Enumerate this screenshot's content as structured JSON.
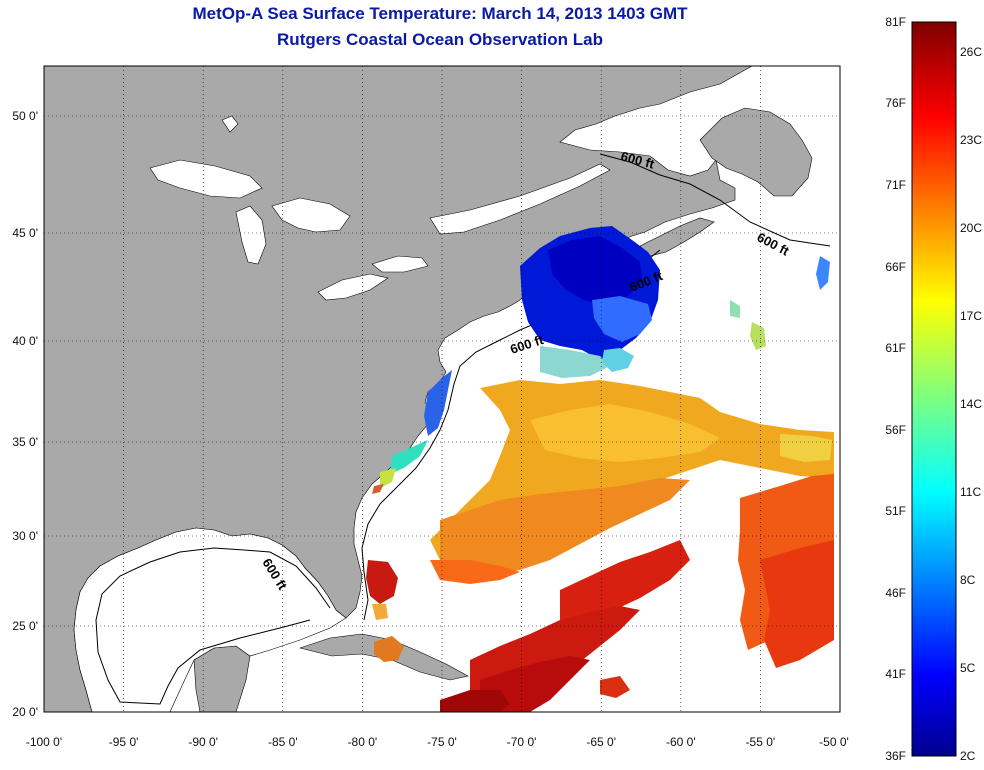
{
  "title": {
    "line1": "MetOp-A Sea Surface Temperature:  March 14, 2013 1403 GMT",
    "line2": "Rutgers Coastal Ocean Observation Lab"
  },
  "map": {
    "projection": "mercator",
    "lon_range": [
      -100,
      -50
    ],
    "lat_range": [
      20,
      52
    ],
    "longitude_ticks": [
      "-100 0'",
      "-95 0'",
      "-90 0'",
      "-85 0'",
      "-80 0'",
      "-75 0'",
      "-70 0'",
      "-65 0'",
      "-60 0'",
      "-55 0'",
      "-50 0'"
    ],
    "latitude_ticks": [
      "50 0'",
      "45 0'",
      "40 0'",
      "35 0'",
      "30 0'",
      "25 0'",
      "20 0'"
    ],
    "grid": "dotted",
    "land_color": "#a9a9a9",
    "contour_labels": [
      "600 ft",
      "600 ft",
      "600 ft",
      "600 ft",
      "600 ft"
    ]
  },
  "colorbar": {
    "colormap": "jet",
    "fahrenheit_labels": [
      "81F",
      "76F",
      "71F",
      "66F",
      "61F",
      "56F",
      "51F",
      "46F",
      "41F",
      "36F"
    ],
    "celsius_labels": [
      "26C",
      "23C",
      "20C",
      "17C",
      "14C",
      "11C",
      "8C",
      "5C",
      "2C"
    ]
  }
}
